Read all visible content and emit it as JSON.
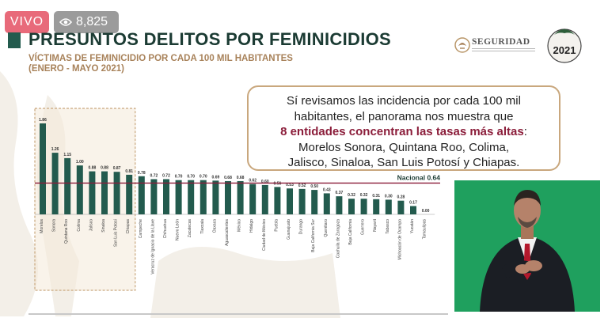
{
  "overlay": {
    "live_label": "VIVO",
    "view_count": "8,825",
    "eye_icon": "eye-icon"
  },
  "header": {
    "title": "PRESUNTOS DELITOS POR FEMINICIDIOS",
    "subtitle_line1": "VÍCTIMAS DE FEMINICIDIO POR CADA 100 MIL HABITANTES",
    "subtitle_line2": "(ENERO - MAYO 2021)"
  },
  "logos": {
    "seguridad": "SEGURIDAD",
    "year_badge": "2021"
  },
  "callout": {
    "line1": "Sí revisamos las incidencia por cada 100 mil",
    "line2": "habitantes, el panorama nos muestra que",
    "highlight": "8 entidades concentran las tasas más altas",
    "colon": ":",
    "line4": "Morelos Sonora, Quintana Roo, Colima,",
    "line5": "Jalisco, Sinaloa, San Luis Potosí y Chiapas."
  },
  "chart_data": {
    "type": "bar",
    "categories": [
      "Morelos",
      "Sonora",
      "Quintana Roo",
      "Colima",
      "Jalisco",
      "Sinaloa",
      "San Luis Potosí",
      "Chiapas",
      "Campeche",
      "Veracruz de Ignacio de la Llave",
      "Chihuahua",
      "Nuevo León",
      "Zacatecas",
      "Tlaxcala",
      "Oaxaca",
      "Aguascalientes",
      "México",
      "Hidalgo",
      "Ciudad de México",
      "Puebla",
      "Guanajuato",
      "Durango",
      "Baja California Sur",
      "Querétaro",
      "Coahuila de Zaragoza",
      "Baja California",
      "Guerrero",
      "Nayarit",
      "Tabasco",
      "Michoacán de Ocampo",
      "Yucatán",
      "Tamaulipas"
    ],
    "values": [
      1.86,
      1.26,
      1.15,
      1.0,
      0.88,
      0.88,
      0.87,
      0.81,
      0.78,
      0.72,
      0.72,
      0.7,
      0.7,
      0.7,
      0.69,
      0.68,
      0.68,
      0.62,
      0.6,
      0.56,
      0.53,
      0.52,
      0.5,
      0.43,
      0.37,
      0.32,
      0.32,
      0.31,
      0.3,
      0.28,
      0.17,
      0.0
    ],
    "value_labels": [
      "1.86",
      "1.26",
      "1.15",
      "1.00",
      "0.88",
      "0.88",
      "0.87",
      "0.81",
      "0.78",
      "0.72",
      "0.72",
      "0.70",
      "0.70",
      "0.70",
      "0.69",
      "0.68",
      "0.68",
      "0.62",
      "0.60",
      "0.56",
      "0.53",
      "0.52",
      "0.50",
      "0.43",
      "0.37",
      "0.32",
      "0.32",
      "0.31",
      "0.30",
      "0.28",
      "0.17",
      "0.00"
    ],
    "reference_line": {
      "label": "Nacional 0.64",
      "value": 0.64
    },
    "highlighted_count": 8,
    "bar_color": "#235b4e",
    "reference_color": "#8b1d3a",
    "highlight_border_color": "#c9a77d",
    "ylim": [
      0,
      1.9
    ],
    "grid": false
  }
}
